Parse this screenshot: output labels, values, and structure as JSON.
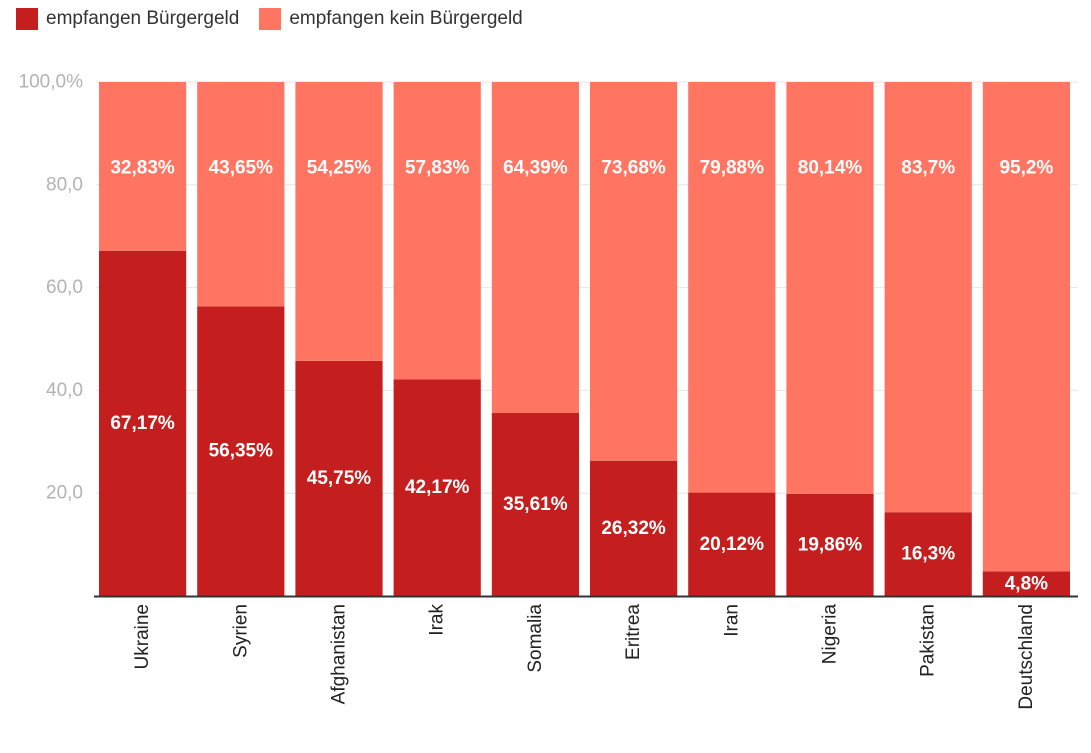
{
  "chart_data": {
    "type": "bar",
    "stacked": true,
    "categories": [
      "Ukraine",
      "Syrien",
      "Afghanistan",
      "Irak",
      "Somalia",
      "Eritrea",
      "Iran",
      "Nigeria",
      "Pakistan",
      "Deutschland"
    ],
    "series": [
      {
        "name": "empfangen Bürgergeld",
        "color": "#c41e1e",
        "values": [
          67.17,
          56.35,
          45.75,
          42.17,
          35.61,
          26.32,
          20.12,
          19.86,
          16.3,
          4.8
        ],
        "labels": [
          "67,17%",
          "56,35%",
          "45,75%",
          "42,17%",
          "35,61%",
          "26,32%",
          "20,12%",
          "19,86%",
          "16,3%",
          "4,8%"
        ]
      },
      {
        "name": "empfangen kein Bürgergeld",
        "color": "#ff7562",
        "values": [
          32.83,
          43.65,
          54.25,
          57.83,
          64.39,
          73.68,
          79.88,
          80.14,
          83.7,
          95.2
        ],
        "labels": [
          "32,83%",
          "43,65%",
          "54,25%",
          "57,83%",
          "64,39%",
          "73,68%",
          "79,88%",
          "80,14%",
          "83,7%",
          "95,2%"
        ]
      }
    ],
    "ylim": [
      0,
      100
    ],
    "yticks": [
      20,
      40,
      60,
      80,
      100
    ],
    "ytick_labels": [
      "20,0",
      "40,0",
      "60,0",
      "80,0",
      "100,0%"
    ],
    "title": "",
    "xlabel": "",
    "ylabel": "",
    "legend_position": "top-left",
    "grid": true,
    "colors": {
      "axis": "#333333",
      "grid": "#e6e6e6"
    }
  }
}
